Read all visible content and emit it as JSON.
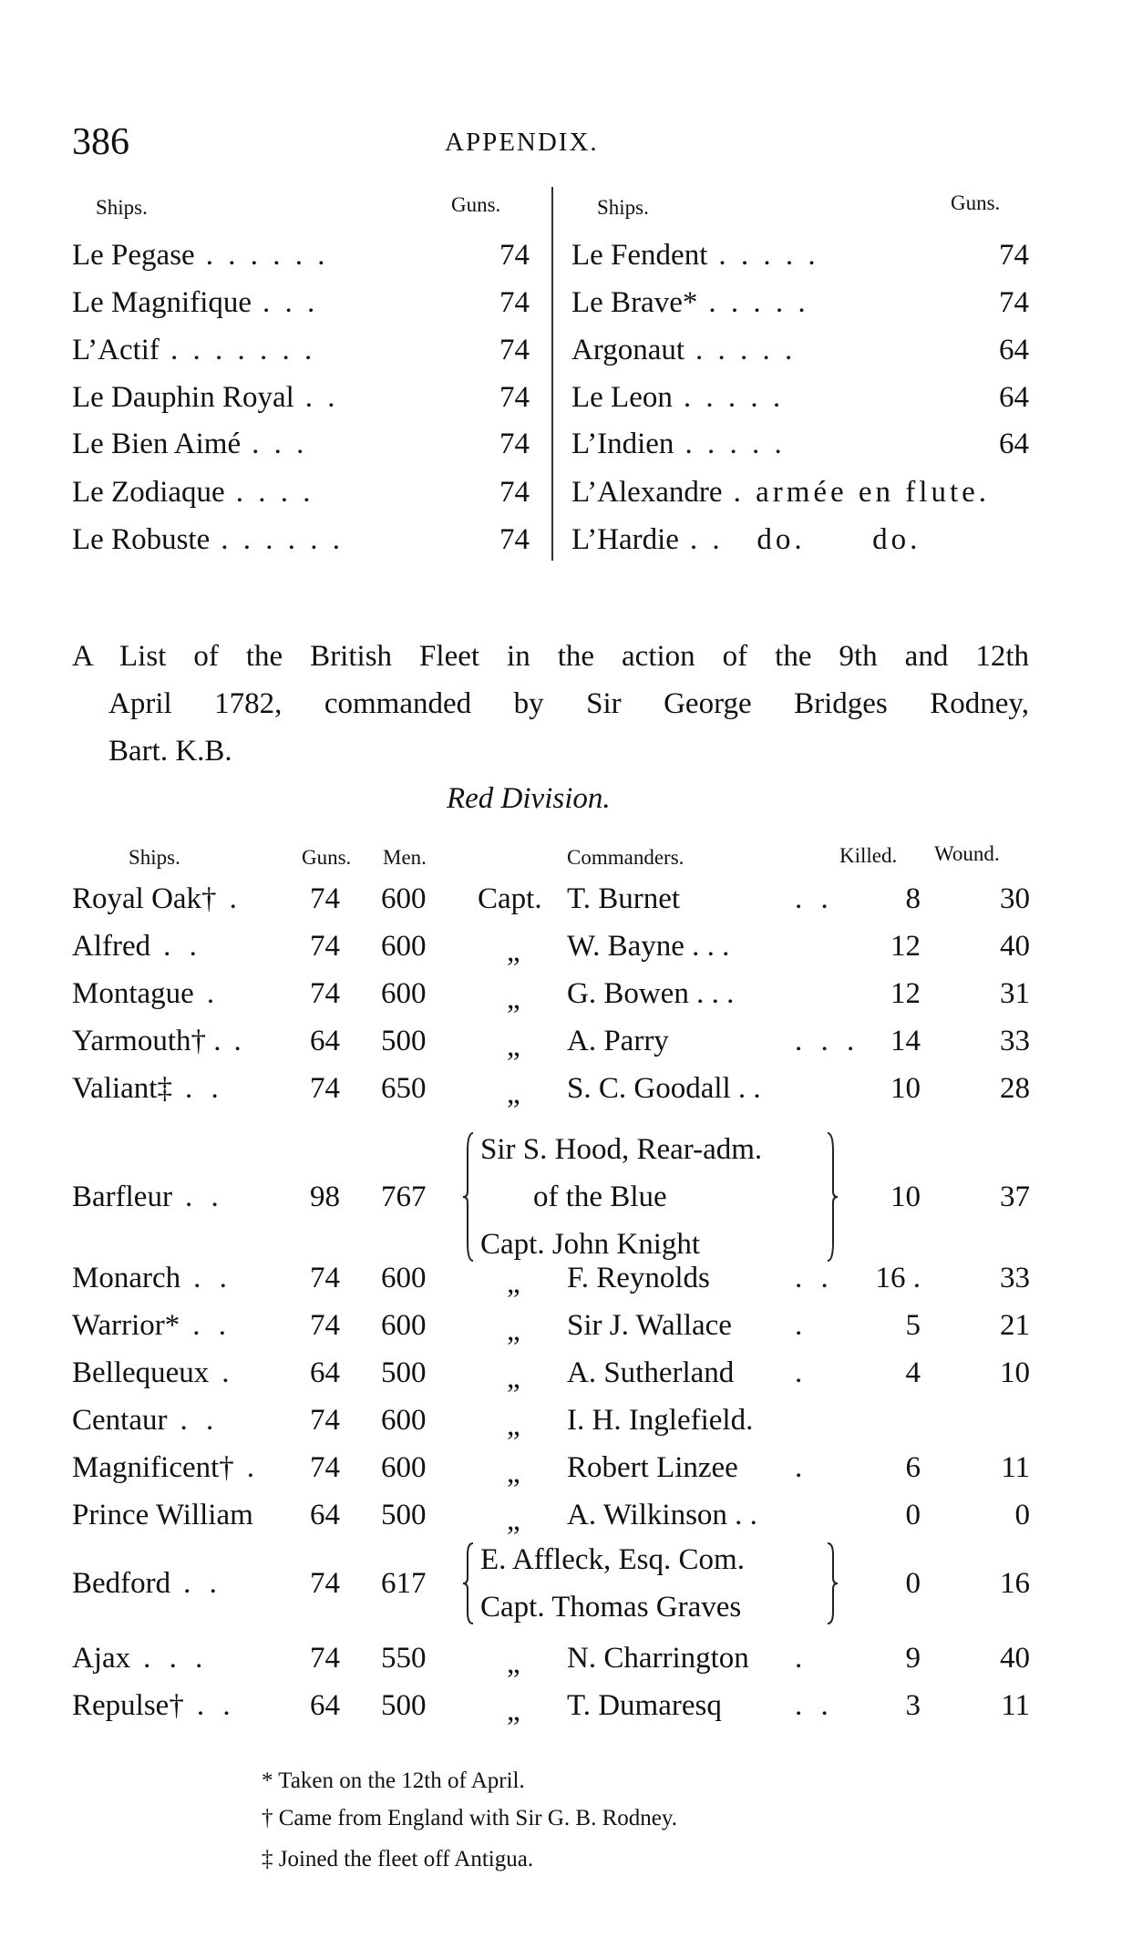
{
  "header": {
    "page_number": "386",
    "running_title": "APPENDIX."
  },
  "french_table": {
    "headers": {
      "ships": "Ships.",
      "guns": "Guns."
    },
    "left": [
      {
        "name": "Le Pegase",
        "leader": ". . . . . .",
        "guns": "74"
      },
      {
        "name": "Le Magnifique",
        "leader": ". . .",
        "guns": "74"
      },
      {
        "name": "L’Actif",
        "leader": ". . . . . . .",
        "guns": "74"
      },
      {
        "name": "Le Dauphin Royal",
        "leader": ". .",
        "guns": "74"
      },
      {
        "name": "Le Bien Aimé",
        "leader": ". . .",
        "guns": "74"
      },
      {
        "name": "Le Zodiaque",
        "leader": ". . . .",
        "guns": "74"
      },
      {
        "name": "Le Robuste",
        "leader": ". . . . . .",
        "guns": "74"
      }
    ],
    "right": [
      {
        "name": "Le Fendent",
        "leader": ". . . . .",
        "guns": "74"
      },
      {
        "name": "Le Brave*",
        "leader": ". . . . .",
        "guns": "74"
      },
      {
        "name": "Argonaut",
        "leader": ". . . . .",
        "guns": "64"
      },
      {
        "name": "Le Leon",
        "leader": ". . . . .",
        "guns": "64"
      },
      {
        "name": "L’Indien",
        "leader": ". . . . .",
        "guns": "64"
      },
      {
        "name": "L’Alexandre",
        "leader": ". armée en flute.",
        "guns": ""
      },
      {
        "name": "L’Hardie",
        "leader": ". .   do.      do.",
        "guns": ""
      }
    ]
  },
  "intro": {
    "lines": [
      "A List of the British Fleet in the action of the 9th and 12th",
      "April 1782, commanded by Sir George Bridges Rodney,",
      "Bart. K.B."
    ],
    "division": "Red Division."
  },
  "british_table": {
    "headers": {
      "ships": "Ships.",
      "guns": "Guns.",
      "men": "Men.",
      "commanders": "Commanders.",
      "killed": "Killed.",
      "wounded": "Wound."
    },
    "rows": [
      {
        "name": "Royal Oak†",
        "leader": ".",
        "guns": "74",
        "men": "600",
        "title": "Capt.",
        "commander": "T. Burnet",
        "leader2": ". .",
        "killed": "8",
        "wounded": "30"
      },
      {
        "name": "Alfred",
        "leader": ". .",
        "guns": "74",
        "men": "600",
        "title": "„",
        "commander": "W. Bayne . . .",
        "leader2": "",
        "killed": "12",
        "wounded": "40"
      },
      {
        "name": "Montague",
        "leader": ".",
        "guns": "74",
        "men": "600",
        "title": "„",
        "commander": "G. Bowen . . .",
        "leader2": "",
        "killed": "12",
        "wounded": "31"
      },
      {
        "name": "Yarmouth† .",
        "leader": ".",
        "guns": "64",
        "men": "500",
        "title": "„",
        "commander": "A. Parry",
        "leader2": ". . .",
        "killed": "14",
        "wounded": "33"
      },
      {
        "name": "Valiant‡",
        "leader": ". .",
        "guns": "74",
        "men": "650",
        "title": "„",
        "commander": "S. C. Goodall . .",
        "leader2": "",
        "killed": "10",
        "wounded": "28"
      },
      {
        "name": "Barfleur",
        "leader": ". .",
        "guns": "98",
        "men": "767",
        "commander_lines": [
          "Sir S. Hood, Rear-adm.",
          "of the Blue",
          "Capt. John Knight"
        ],
        "killed": "10",
        "wounded": "37"
      },
      {
        "name": "Monarch",
        "leader": ". .",
        "guns": "74",
        "men": "600",
        "title": "„",
        "commander": "F. Reynolds",
        "leader2": ". .",
        "killed": "16 .",
        "wounded": "33"
      },
      {
        "name": "Warrior*",
        "leader": ". .",
        "guns": "74",
        "men": "600",
        "title": "„",
        "commander": "Sir J. Wallace",
        "leader2": ".",
        "killed": "5",
        "wounded": "21"
      },
      {
        "name": "Bellequeux",
        "leader": ".",
        "guns": "64",
        "men": "500",
        "title": "„",
        "commander": "A. Sutherland",
        "leader2": ".",
        "killed": "4",
        "wounded": "10"
      },
      {
        "name": "Centaur",
        "leader": ". .",
        "guns": "74",
        "men": "600",
        "title": "„",
        "commander": "I. H. Inglefield.",
        "leader2": "",
        "killed": "",
        "wounded": ""
      },
      {
        "name": "Magnificent†",
        "leader": ".",
        "guns": "74",
        "men": "600",
        "title": "„",
        "commander": "Robert Linzee",
        "leader2": ".",
        "killed": "6",
        "wounded": "11"
      },
      {
        "name": "Prince William",
        "leader": "",
        "guns": "64",
        "men": "500",
        "title": "„",
        "commander": "A. Wilkinson . .",
        "leader2": "",
        "killed": "0",
        "wounded": "0"
      },
      {
        "name": "Bedford",
        "leader": ". .",
        "guns": "74",
        "men": "617",
        "commander_lines": [
          "E. Affleck, Esq. Com.",
          "Capt. Thomas Graves"
        ],
        "killed": "0",
        "wounded": "16"
      },
      {
        "name": "Ajax",
        "leader": ". . .",
        "guns": "74",
        "men": "550",
        "title": "„",
        "commander": "N. Charrington",
        "leader2": ".",
        "killed": "9",
        "wounded": "40"
      },
      {
        "name": "Repulse†",
        "leader": ". .",
        "guns": "64",
        "men": "500",
        "title": "„",
        "commander": "T. Dumaresq",
        "leader2": ". .",
        "killed": "3",
        "wounded": "11"
      }
    ]
  },
  "footnotes": [
    "* Taken on the 12th of April.",
    "† Came from England with Sir G. B. Rodney.",
    "‡ Joined the fleet off Antigua."
  ]
}
